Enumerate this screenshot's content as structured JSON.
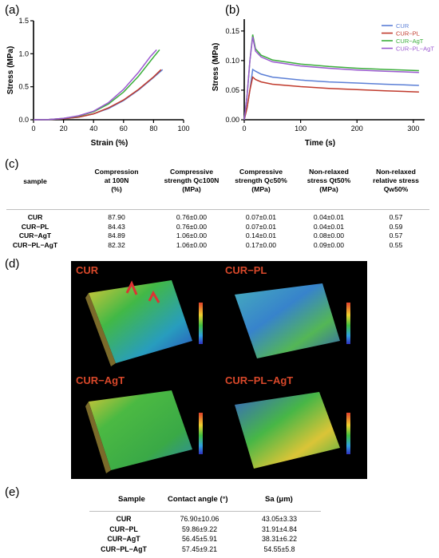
{
  "panels": {
    "a": "(a)",
    "b": "(b)",
    "c": "(c)",
    "d": "(d)",
    "e": "(e)"
  },
  "chart_data": [
    {
      "type": "line",
      "panel": "a",
      "xlabel": "Strain (%)",
      "ylabel": "Stress (MPa)",
      "xlim": [
        0,
        100
      ],
      "ylim": [
        0,
        1.5
      ],
      "xticks": [
        "0",
        "20",
        "40",
        "60",
        "80",
        "100"
      ],
      "yticks": [
        "0.0",
        "0.5",
        "1.0",
        "1.5"
      ],
      "grid": false,
      "series": [
        {
          "color": "#5b7fd6",
          "x": [
            0,
            10,
            20,
            30,
            40,
            50,
            60,
            70,
            80,
            86
          ],
          "y": [
            0,
            0.003,
            0.015,
            0.04,
            0.09,
            0.17,
            0.29,
            0.45,
            0.64,
            0.76
          ]
        },
        {
          "color": "#c0392b",
          "x": [
            0,
            10,
            20,
            30,
            40,
            50,
            60,
            70,
            80,
            85
          ],
          "y": [
            0,
            0.003,
            0.015,
            0.04,
            0.09,
            0.18,
            0.3,
            0.46,
            0.65,
            0.76
          ]
        },
        {
          "color": "#3cae3c",
          "x": [
            0,
            10,
            20,
            30,
            40,
            50,
            60,
            70,
            80,
            84
          ],
          "y": [
            0,
            0.004,
            0.02,
            0.055,
            0.12,
            0.24,
            0.42,
            0.66,
            0.95,
            1.06
          ]
        },
        {
          "color": "#9b59d0",
          "x": [
            0,
            10,
            20,
            30,
            40,
            50,
            60,
            70,
            78,
            82
          ],
          "y": [
            0,
            0.004,
            0.02,
            0.06,
            0.13,
            0.26,
            0.46,
            0.72,
            0.96,
            1.06
          ]
        }
      ]
    },
    {
      "type": "line",
      "panel": "b",
      "xlabel": "Time (s)",
      "ylabel": "Stress (MPa)",
      "xlim": [
        0,
        320
      ],
      "ylim": [
        0,
        0.17
      ],
      "xticks": [
        "0",
        "100",
        "200",
        "300"
      ],
      "yticks": [
        "0.00",
        "0.05",
        "0.10",
        "0.15"
      ],
      "grid": false,
      "legend": "top-right",
      "series": [
        {
          "name": "CUR",
          "color": "#5b7fd6",
          "x": [
            0,
            5,
            10,
            15,
            20,
            30,
            50,
            100,
            150,
            200,
            250,
            310
          ],
          "y": [
            0,
            0.02,
            0.05,
            0.085,
            0.082,
            0.077,
            0.072,
            0.067,
            0.064,
            0.062,
            0.06,
            0.058
          ]
        },
        {
          "name": "CUR−PL",
          "color": "#c0392b",
          "x": [
            0,
            5,
            10,
            15,
            20,
            30,
            50,
            100,
            150,
            200,
            250,
            310
          ],
          "y": [
            0,
            0.02,
            0.05,
            0.072,
            0.068,
            0.064,
            0.06,
            0.056,
            0.053,
            0.051,
            0.049,
            0.047
          ]
        },
        {
          "name": "CUR−AgT",
          "color": "#3cae3c",
          "x": [
            0,
            5,
            10,
            15,
            20,
            30,
            50,
            100,
            150,
            200,
            250,
            310
          ],
          "y": [
            0,
            0.04,
            0.1,
            0.144,
            0.12,
            0.109,
            0.101,
            0.094,
            0.09,
            0.087,
            0.085,
            0.083
          ]
        },
        {
          "name": "CUR−PL−AgT",
          "color": "#9b59d0",
          "x": [
            0,
            5,
            10,
            15,
            20,
            30,
            50,
            100,
            150,
            200,
            250,
            310
          ],
          "y": [
            0,
            0.04,
            0.1,
            0.14,
            0.116,
            0.106,
            0.098,
            0.091,
            0.087,
            0.084,
            0.082,
            0.08
          ]
        }
      ]
    }
  ],
  "table_c": {
    "headers": [
      [
        "sample"
      ],
      [
        "Compression",
        "at 100N",
        "(%)"
      ],
      [
        "Compressive",
        "strength Qc100N",
        "(MPa)"
      ],
      [
        "Compressive",
        "strength Qc50%",
        "(MPa)"
      ],
      [
        "Non-relaxed",
        "stress Qt50%",
        "(MPa)"
      ],
      [
        "Non-relaxed",
        "relative stress",
        "Qw50%"
      ]
    ],
    "rows": [
      {
        "name": "CUR",
        "cells": [
          "87.90",
          "0.76±0.00",
          "0.07±0.01",
          "0.04±0.01",
          "0.57"
        ]
      },
      {
        "name": "CUR−PL",
        "cells": [
          "84.43",
          "0.76±0.00",
          "0.07±0.01",
          "0.04±0.01",
          "0.59"
        ]
      },
      {
        "name": "CUR−AgT",
        "cells": [
          "84.89",
          "1.06±0.00",
          "0.14±0.01",
          "0.08±0.00",
          "0.57"
        ]
      },
      {
        "name": "CUR−PL−AgT",
        "cells": [
          "82.32",
          "1.06±0.00",
          "0.17±0.00",
          "0.09±0.00",
          "0.55"
        ]
      }
    ]
  },
  "images_d": {
    "tiles": [
      "CUR",
      "CUR−PL",
      "CUR−AgT",
      "CUR−PL−AgT"
    ]
  },
  "table_e": {
    "headers": [
      "Sample",
      "Contact angle (°)",
      "Sa (μm)"
    ],
    "rows": [
      {
        "name": "CUR",
        "cells": [
          "76.90±10.06",
          "43.05±3.33"
        ]
      },
      {
        "name": "CUR−PL",
        "cells": [
          "59.86±9.22",
          "31.91±4.84"
        ]
      },
      {
        "name": "CUR−AgT",
        "cells": [
          "56.45±5.91",
          "38.31±6.22"
        ]
      },
      {
        "name": "CUR−PL−AgT",
        "cells": [
          "57.45±9.21",
          "54.55±5.8"
        ]
      }
    ]
  }
}
